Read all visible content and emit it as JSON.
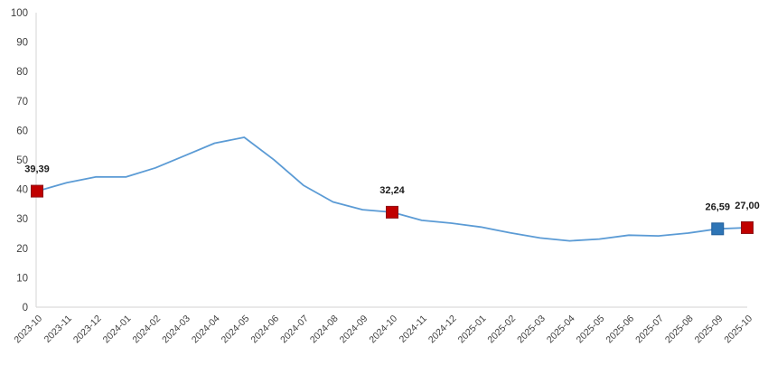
{
  "chart_data": {
    "type": "line",
    "title": "",
    "categories": [
      "2023-10",
      "2023-11",
      "2023-12",
      "2024-01",
      "2024-02",
      "2024-03",
      "2024-04",
      "2024-05",
      "2024-06",
      "2024-07",
      "2024-08",
      "2024-09",
      "2024-10",
      "2024-11",
      "2024-12",
      "2025-01",
      "2025-02",
      "2025-03",
      "2025-04",
      "2025-05",
      "2025-06",
      "2025-07",
      "2025-08",
      "2025-09",
      "2025-10"
    ],
    "values": [
      39.39,
      42.25,
      44.22,
      44.2,
      47.29,
      51.47,
      55.66,
      57.68,
      50.09,
      41.37,
      35.75,
      33.09,
      32.24,
      29.47,
      28.52,
      27.2,
      25.21,
      23.5,
      22.5,
      23.13,
      24.45,
      24.19,
      25.16,
      26.59,
      27.0
    ],
    "ylim": [
      0,
      100
    ],
    "y_ticks": [
      0,
      10,
      20,
      30,
      40,
      50,
      60,
      70,
      80,
      90,
      100
    ],
    "grid": false,
    "legend": "none",
    "colors": {
      "line": "#5B9BD5",
      "axis": "#DCDBDB",
      "tick_label": "#3F3F3F",
      "data_label": "#1A1A1A"
    },
    "markers": [
      {
        "category": "2023-10",
        "index": 0,
        "label": "39,39",
        "fill": "#C00000",
        "border": "#8E1418"
      },
      {
        "category": "2024-10",
        "index": 12,
        "label": "32,24",
        "fill": "#C00000",
        "border": "#8E1418"
      },
      {
        "category": "2025-09",
        "index": 23,
        "label": "26,59",
        "fill": "#2E75B6",
        "border": "#1F5C99"
      },
      {
        "category": "2025-10",
        "index": 24,
        "label": "27,00",
        "fill": "#C00000",
        "border": "#8E1418"
      }
    ]
  }
}
